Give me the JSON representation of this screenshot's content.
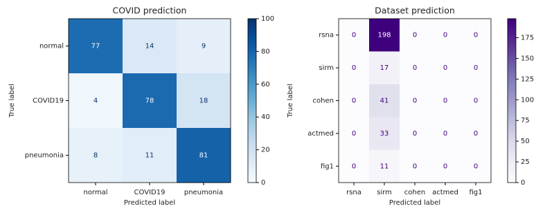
{
  "chart_data": [
    {
      "type": "heatmap",
      "title": "COVID prediction",
      "x_label": "Predicted label",
      "y_label": "True label",
      "x_categories": [
        "normal",
        "COVID19",
        "pneumonia"
      ],
      "y_categories": [
        "normal",
        "COVID19",
        "pneumonia"
      ],
      "values": [
        [
          77,
          14,
          9
        ],
        [
          4,
          78,
          18
        ],
        [
          8,
          11,
          81
        ]
      ],
      "colormap": [
        "#f7fbff",
        "#deebf7",
        "#c6dbef",
        "#9ecae1",
        "#6baed6",
        "#4292c6",
        "#2171b5",
        "#08519c",
        "#08306b"
      ],
      "clim": [
        0,
        100
      ],
      "cticks": [
        0,
        20,
        40,
        60,
        80,
        100
      ]
    },
    {
      "type": "heatmap",
      "title": "Dataset prediction",
      "x_label": "Predicted label",
      "y_label": "True label",
      "x_categories": [
        "rsna",
        "sirm",
        "cohen",
        "actmed",
        "fig1"
      ],
      "y_categories": [
        "rsna",
        "sirm",
        "cohen",
        "actmed",
        "fig1"
      ],
      "values": [
        [
          0,
          198,
          0,
          0,
          0
        ],
        [
          0,
          17,
          0,
          0,
          0
        ],
        [
          0,
          41,
          0,
          0,
          0
        ],
        [
          0,
          33,
          0,
          0,
          0
        ],
        [
          0,
          11,
          0,
          0,
          0
        ]
      ],
      "colormap": [
        "#fcfbfd",
        "#efedf5",
        "#dadaeb",
        "#bcbddc",
        "#9e9ac8",
        "#807dba",
        "#6a51a3",
        "#54278f",
        "#3f007d"
      ],
      "clim": [
        0,
        198
      ],
      "cticks": [
        0,
        25,
        50,
        75,
        100,
        125,
        150,
        175
      ]
    }
  ]
}
